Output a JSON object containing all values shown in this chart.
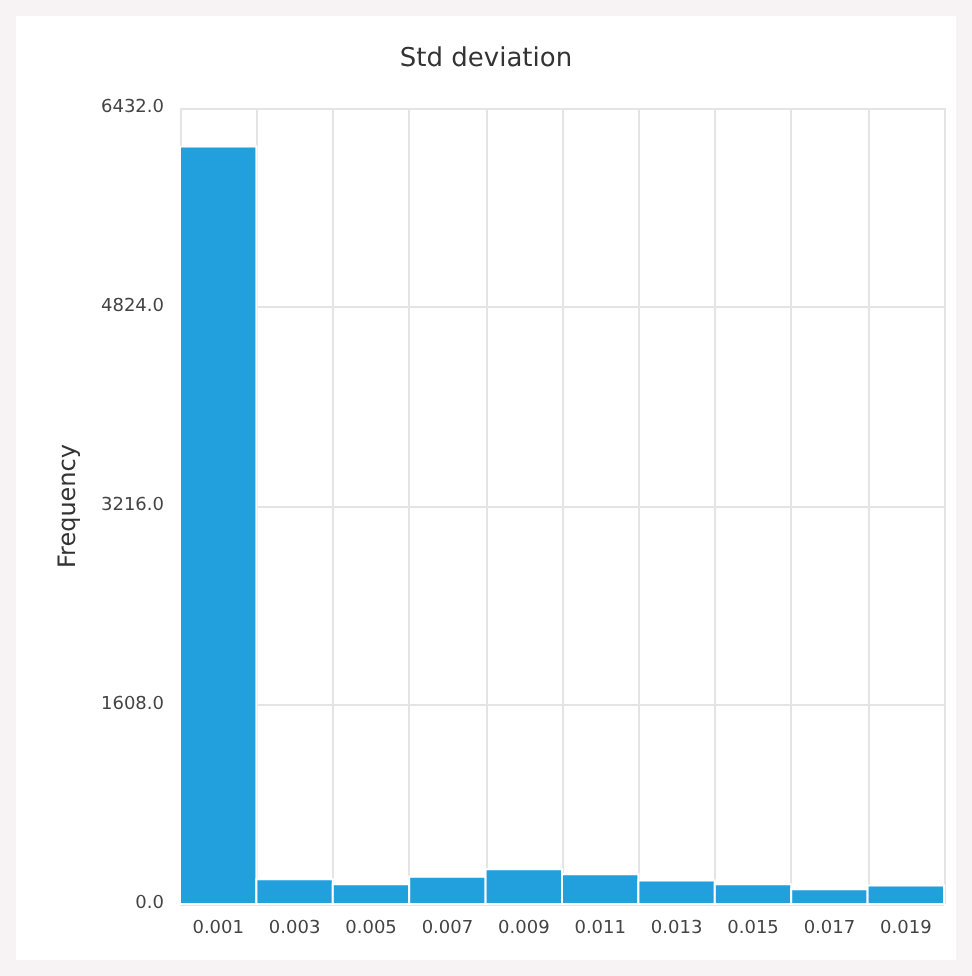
{
  "chart_data": {
    "type": "histogram",
    "title": "Std deviation",
    "ylabel": "Frequency",
    "bins": [
      0,
      0.002,
      0.004,
      0.006,
      0.008,
      0.01,
      0.012,
      0.014,
      0.016,
      0.018,
      0.02
    ],
    "values": [
      6120,
      200,
      160,
      220,
      280,
      240,
      190,
      160,
      120,
      150
    ],
    "color": "#229fdd",
    "xlim": [
      0,
      0.02
    ],
    "xticks": [
      0.001,
      0.003,
      0.005,
      0.007,
      0.009,
      0.011,
      0.013,
      0.015,
      0.017,
      0.019
    ],
    "ylim": [
      0,
      6432
    ],
    "yticks": [
      {
        "value": 0,
        "label": "0.0"
      },
      {
        "value": 1608,
        "label": "1608.0"
      },
      {
        "value": 3216,
        "label": "3216.0"
      },
      {
        "value": 4824,
        "label": "4824.0"
      },
      {
        "value": 6432,
        "label": "6432.0"
      }
    ],
    "grid": true
  }
}
